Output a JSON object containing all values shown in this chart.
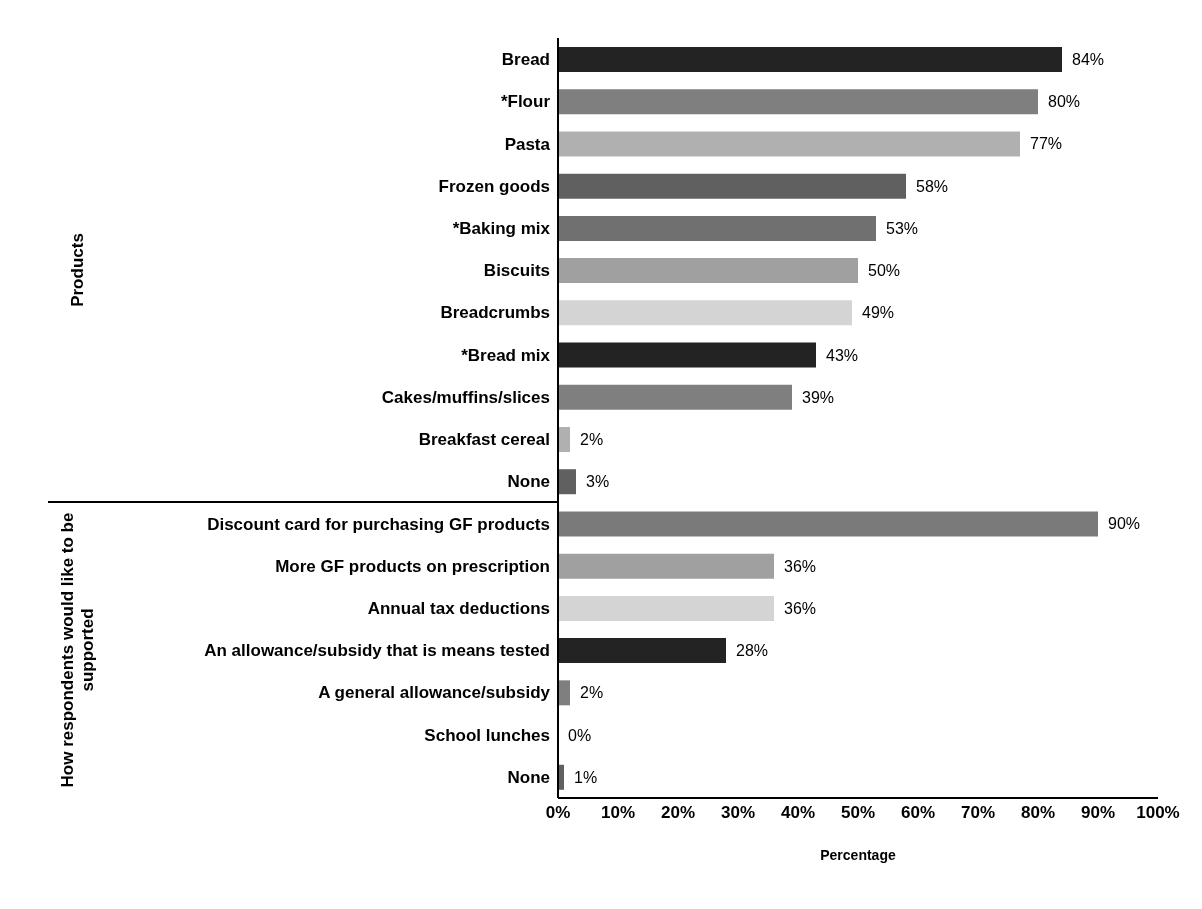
{
  "chart_data": {
    "type": "bar",
    "orientation": "horizontal",
    "xlabel": "Percentage",
    "annotations": [
      "Products",
      "How respondents would like to be supported"
    ],
    "categories": [
      "Bread",
      "*Flour",
      "Pasta",
      "Frozen goods",
      "*Baking mix",
      "Biscuits",
      "Breadcrumbs",
      "*Bread mix",
      "Cakes/muffins/slices",
      "Breakfast cereal",
      "None",
      "Discount card for purchasing GF products",
      "More GF products on prescription",
      "Annual tax deductions",
      "An allowance/subsidy that is means tested",
      "A general allowance/subsidy",
      "School lunches",
      "None"
    ],
    "values": [
      84,
      80,
      77,
      58,
      53,
      50,
      49,
      43,
      39,
      2,
      3,
      90,
      36,
      36,
      28,
      2,
      0,
      1
    ],
    "value_labels": [
      "84%",
      "80%",
      "77%",
      "58%",
      "53%",
      "50%",
      "49%",
      "43%",
      "39%",
      "2%",
      "3%",
      "90%",
      "36%",
      "36%",
      "28%",
      "2%",
      "0%",
      "1%"
    ],
    "colors": [
      "#232323",
      "#7f7f7f",
      "#b0b0b0",
      "#606060",
      "#707070",
      "#a0a0a0",
      "#d4d4d4",
      "#232323",
      "#7f7f7f",
      "#b0b0b0",
      "#606060",
      "#7a7a7a",
      "#a0a0a0",
      "#d4d4d4",
      "#232323",
      "#7f7f7f",
      "#b0b0b0",
      "#606060"
    ],
    "xlim": [
      0,
      100
    ],
    "xticks": [
      {
        "value": 0,
        "label": "0%"
      },
      {
        "value": 10,
        "label": "10%"
      },
      {
        "value": 20,
        "label": "20%"
      },
      {
        "value": 30,
        "label": "30%"
      },
      {
        "value": 40,
        "label": "40%"
      },
      {
        "value": 50,
        "label": "50%"
      },
      {
        "value": 60,
        "label": "60%"
      },
      {
        "value": 70,
        "label": "70%"
      },
      {
        "value": 80,
        "label": "80%"
      },
      {
        "value": 90,
        "label": "90%"
      },
      {
        "value": 100,
        "label": "100%"
      }
    ],
    "grid": false
  }
}
